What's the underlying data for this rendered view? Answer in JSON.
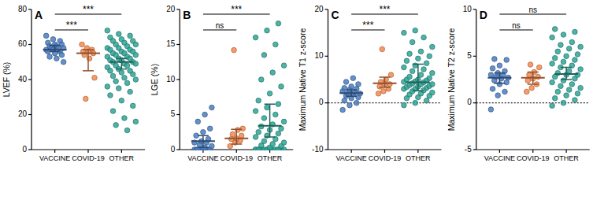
{
  "chart_data": [
    {
      "type": "scatter",
      "title": "A",
      "y_label": "LVEF (%)",
      "categories": [
        "VACCINE",
        "COVID-19",
        "OTHER"
      ],
      "colors": [
        "#4a7cc0",
        "#f4894f",
        "#2fa596"
      ],
      "values": [
        [
          65,
          63,
          62,
          61,
          60,
          60,
          59,
          59,
          58,
          58,
          58,
          57,
          57,
          56,
          56,
          55,
          54,
          53,
          52,
          50
        ],
        [
          60,
          58,
          57,
          56,
          56,
          55,
          54,
          52,
          41,
          29
        ],
        [
          68,
          66,
          65,
          64,
          63,
          62,
          62,
          61,
          60,
          60,
          59,
          58,
          58,
          57,
          57,
          56,
          56,
          55,
          55,
          54,
          54,
          53,
          53,
          52,
          52,
          51,
          51,
          50,
          50,
          49,
          49,
          48,
          48,
          47,
          46,
          45,
          45,
          44,
          43,
          42,
          41,
          40,
          39,
          38,
          36,
          35,
          33,
          31,
          28,
          25,
          22,
          18,
          16,
          14,
          11
        ]
      ],
      "means": [
        57,
        55,
        50
      ],
      "ci": [
        [
          56,
          59.5
        ],
        [
          45,
          57
        ],
        [
          46,
          52
        ]
      ],
      "ylim": [
        0,
        80
      ],
      "yticks": [
        0,
        20,
        40,
        60,
        80
      ],
      "annotations": [
        {
          "from": 0,
          "to": 1,
          "text": "***"
        },
        {
          "from": 0,
          "to": 2,
          "text": "***"
        }
      ]
    },
    {
      "type": "scatter",
      "title": "B",
      "y_label": "LGE (%)",
      "categories": [
        "VACCINE",
        "COVID-19",
        "OTHER"
      ],
      "colors": [
        "#4a7cc0",
        "#f4894f",
        "#2fa596"
      ],
      "values": [
        [
          0,
          0,
          0,
          0,
          0,
          0,
          0,
          0.3,
          0.5,
          0.7,
          1,
          1,
          1.2,
          1.5,
          2,
          2.5,
          3,
          4,
          5,
          6
        ],
        [
          0.5,
          1,
          1.3,
          1.5,
          1.6,
          2,
          2.2,
          2.8,
          3,
          14.2
        ],
        [
          0,
          0,
          0,
          0,
          0,
          0,
          0,
          0,
          0,
          0,
          0,
          0,
          0,
          0,
          0,
          0.3,
          0.5,
          0.6,
          0.8,
          1,
          1.2,
          1.5,
          1.8,
          2,
          2.3,
          2.5,
          2.8,
          3,
          3.3,
          3.6,
          4,
          4.5,
          5,
          5.5,
          6,
          6.5,
          7,
          8,
          9,
          10,
          11,
          12,
          13.5,
          15,
          16,
          17,
          18
        ]
      ],
      "means": [
        1.2,
        1.6,
        3.4
      ],
      "ci": [
        [
          0.3,
          2
        ],
        [
          0.8,
          2.9
        ],
        [
          1.8,
          6.5
        ]
      ],
      "ylim": [
        0,
        20
      ],
      "yticks": [
        0,
        5,
        10,
        15,
        20
      ],
      "annotations": [
        {
          "from": 0,
          "to": 1,
          "text": "ns"
        },
        {
          "from": 0,
          "to": 2,
          "text": "***"
        }
      ]
    },
    {
      "type": "scatter",
      "title": "C",
      "y_label": "Maximum Native T1 z-score",
      "categories": [
        "VACCINE",
        "COVID-19",
        "OTHER"
      ],
      "colors": [
        "#4a7cc0",
        "#f4894f",
        "#2fa596"
      ],
      "values": [
        [
          -1.5,
          -0.5,
          0,
          0.5,
          1,
          1.2,
          1.5,
          1.8,
          2,
          2,
          2.3,
          2.5,
          2.8,
          3,
          3.2,
          3.5,
          4,
          4.5,
          5.3
        ],
        [
          2,
          2.5,
          3,
          3.5,
          4,
          4,
          4.5,
          5,
          6,
          11.5
        ],
        [
          -0.5,
          0,
          0.5,
          1,
          1.2,
          1.5,
          1.8,
          2,
          2.2,
          2.5,
          2.7,
          3,
          3,
          3.2,
          3.4,
          3.5,
          3.6,
          3.8,
          4,
          4,
          4.2,
          4.4,
          4.5,
          4.6,
          4.8,
          5,
          5,
          5.3,
          5.6,
          6,
          6.4,
          6.8,
          7.2,
          7.6,
          8,
          8.5,
          9,
          9.5,
          10,
          10.5,
          11,
          12,
          13,
          14,
          15,
          15.5
        ]
      ],
      "means": [
        2.1,
        4.2,
        4.4
      ],
      "ci": [
        [
          1.4,
          2.8
        ],
        [
          3.3,
          5.5
        ],
        [
          2.6,
          8.3
        ]
      ],
      "ylim": [
        -10,
        20
      ],
      "yticks": [
        -10,
        0,
        10,
        20
      ],
      "reference_lines": [
        0
      ],
      "annotations": [
        {
          "from": 0,
          "to": 1,
          "text": "***"
        },
        {
          "from": 0,
          "to": 2,
          "text": "***"
        }
      ]
    },
    {
      "type": "scatter",
      "title": "D",
      "y_label": "Maximum Native T2 z-score",
      "categories": [
        "VACCINE",
        "COVID-19",
        "OTHER"
      ],
      "colors": [
        "#4a7cc0",
        "#f4894f",
        "#2fa596"
      ],
      "values": [
        [
          -0.7,
          0.8,
          1.2,
          1.5,
          2,
          2.2,
          2.4,
          2.6,
          2.7,
          2.8,
          3,
          3,
          3.2,
          3.4,
          3.7,
          4,
          4.6,
          4.7
        ],
        [
          1.2,
          1.6,
          2,
          2.4,
          2.6,
          2.8,
          3,
          3.3,
          3.8,
          4.1
        ],
        [
          -0.3,
          0,
          0.3,
          0.5,
          0.8,
          1,
          1.2,
          1.4,
          1.6,
          1.8,
          2,
          2.2,
          2.4,
          2.6,
          2.8,
          3,
          3,
          3.2,
          3.4,
          3.6,
          3.8,
          4,
          4.2,
          4.4,
          4.6,
          4.8,
          5,
          5.2,
          5.5,
          5.8,
          6,
          6.2,
          6.5,
          7,
          7.3,
          7.6,
          7.9
        ]
      ],
      "means": [
        2.7,
        2.7,
        3.1
      ],
      "ci": [
        [
          2.1,
          3.2
        ],
        [
          2,
          3.3
        ],
        [
          2.5,
          3.8
        ]
      ],
      "ylim": [
        -5,
        10
      ],
      "yticks": [
        -5,
        0,
        5,
        10
      ],
      "reference_lines": [
        0
      ],
      "annotations": [
        {
          "from": 0,
          "to": 1,
          "text": "ns"
        },
        {
          "from": 0,
          "to": 2,
          "text": "ns"
        }
      ]
    }
  ]
}
